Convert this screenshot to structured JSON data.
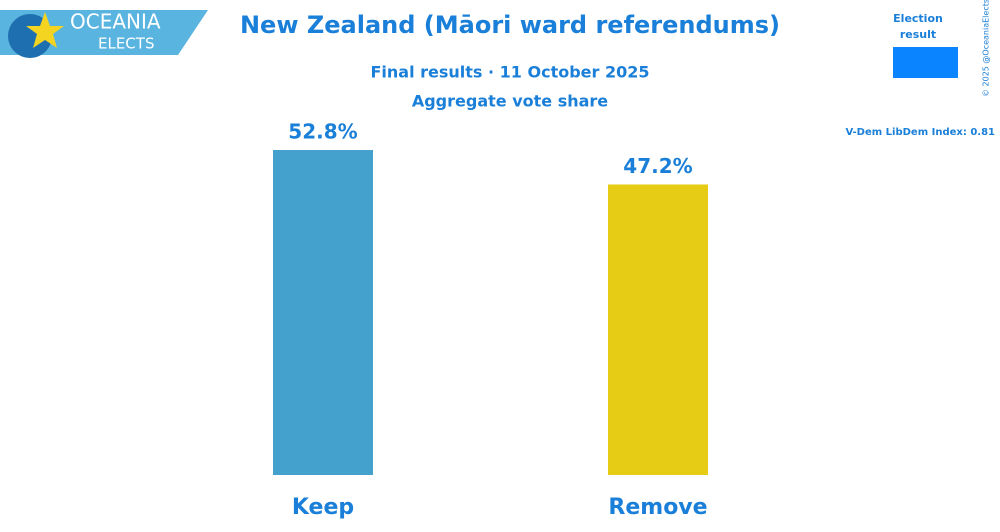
{
  "logo": {
    "line1": "OCEANIA",
    "line2": "ELECTS"
  },
  "chart_data": {
    "type": "bar",
    "title": "New Zealand (Māori ward referendums)",
    "subtitle": "Final results · 11 October 2025",
    "subtitle2": "Aggregate vote share",
    "categories": [
      "Keep",
      "Remove"
    ],
    "values": [
      52.8,
      47.2
    ],
    "value_labels": [
      "52.8%",
      "47.2%"
    ],
    "colors": [
      "#44a0cc",
      "#e6cc14"
    ],
    "legend": {
      "label": "Election result",
      "color": "#0a84ff"
    },
    "note": "V-Dem LibDem Index: 0.81",
    "credit": "© 2025 @OceaniaElects"
  }
}
